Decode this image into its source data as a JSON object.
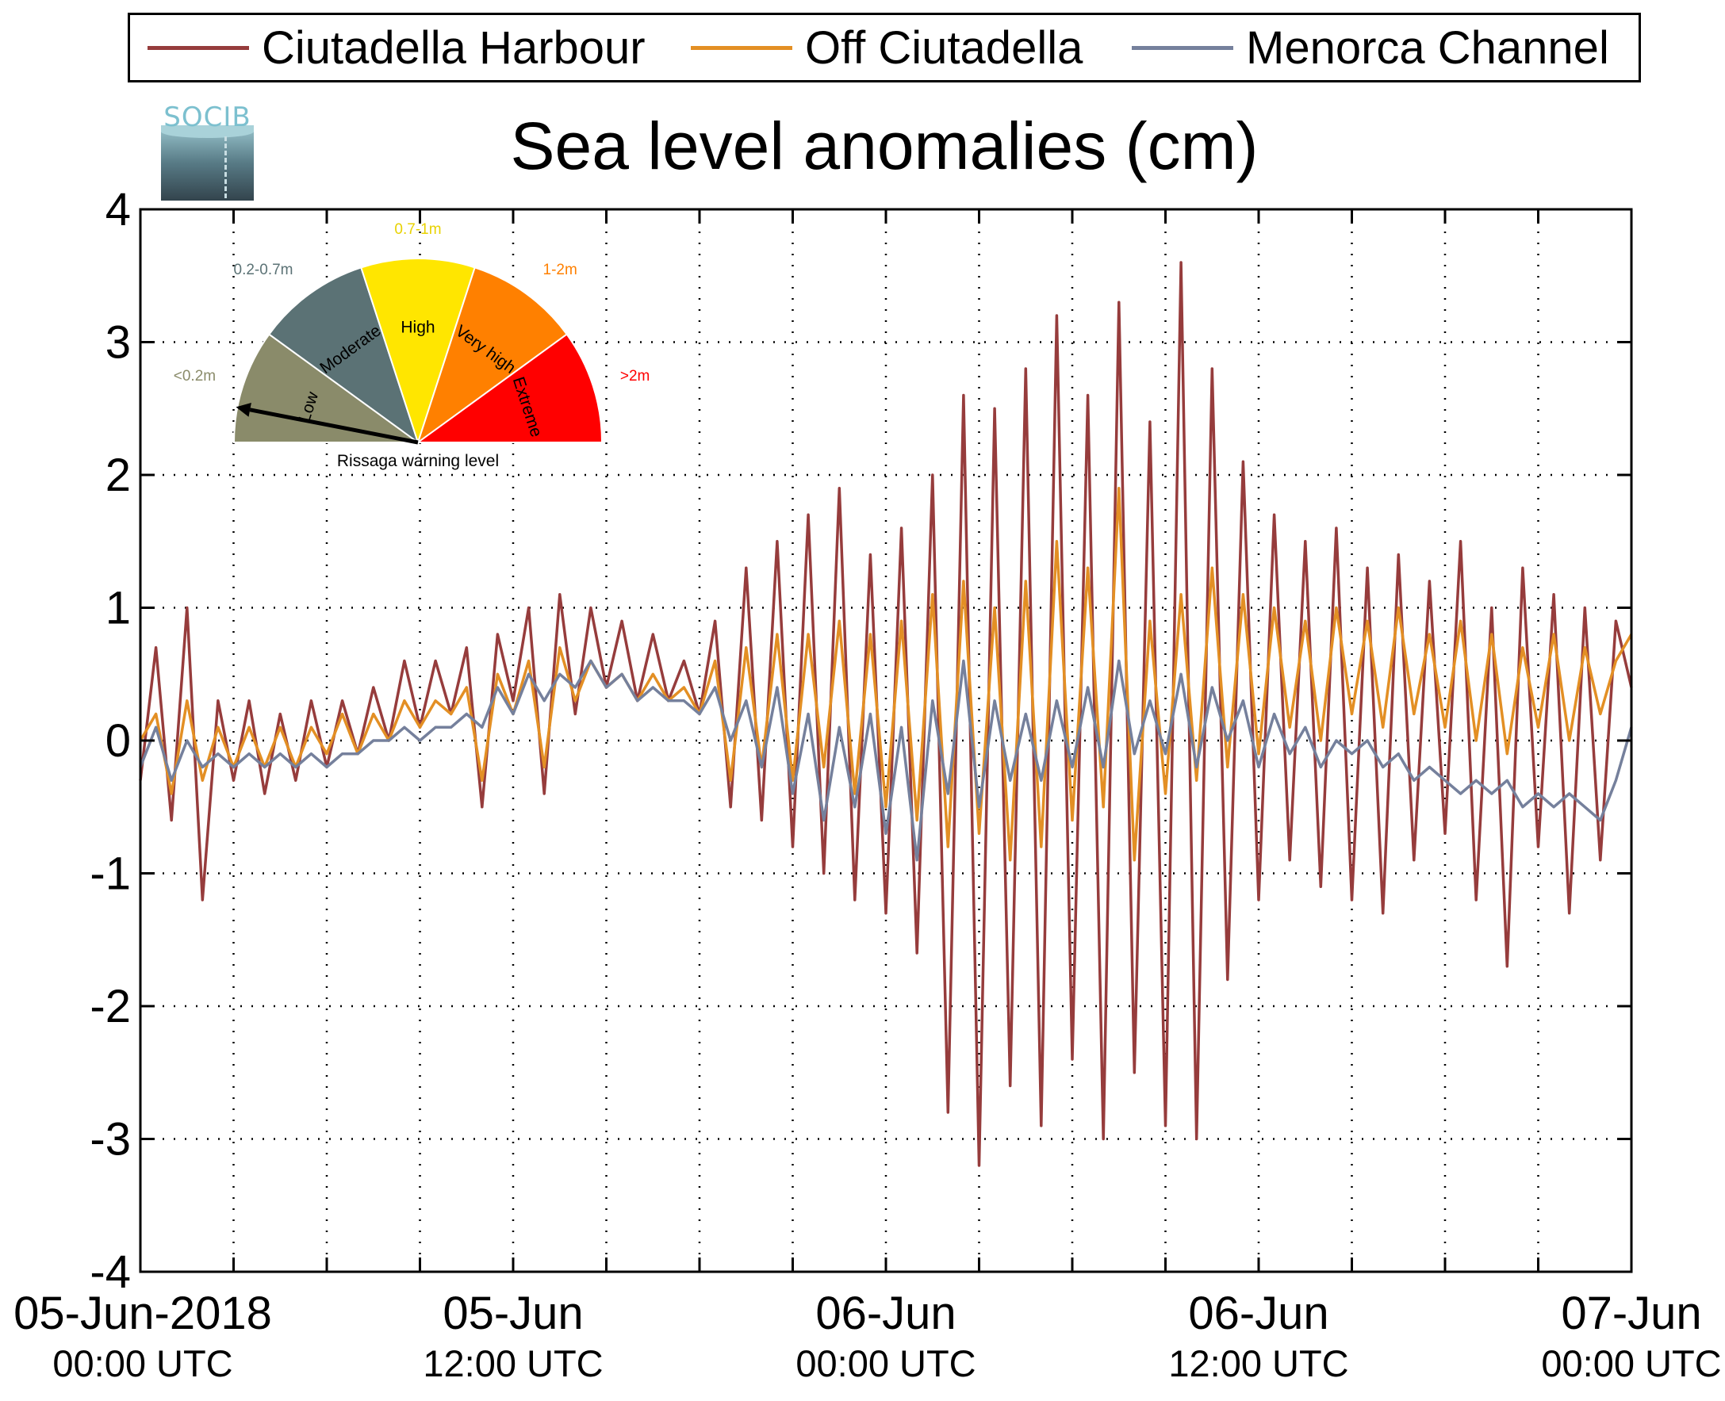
{
  "legend": {
    "items": [
      {
        "label": "Ciutadella Harbour",
        "color": "#963c3c"
      },
      {
        "label": "Off Ciutadella",
        "color": "#e38f24"
      },
      {
        "label": "Menorca Channel",
        "color": "#75809c"
      }
    ]
  },
  "logo": {
    "text": "SOCIB"
  },
  "gauge": {
    "caption": "Rissaga warning level",
    "current_level": "Low",
    "segments": [
      {
        "label": "Low",
        "range": "<0.2m",
        "color": "#8a8b6a"
      },
      {
        "label": "Moderate",
        "range": "0.2-0.7m",
        "color": "#5b7275"
      },
      {
        "label": "High",
        "range": "0.7-1m",
        "color": "#ffe600"
      },
      {
        "label": "Very high",
        "range": "1-2m",
        "color": "#ff8000"
      },
      {
        "label": "Extreme",
        "range": ">2m",
        "color": "#ff0000"
      }
    ]
  },
  "chart_data": {
    "type": "line",
    "title": "Sea level anomalies (cm)",
    "xlabel": "",
    "ylabel": "",
    "x_range": [
      "05-Jun-2018 00:00 UTC",
      "07-Jun-2018 00:00 UTC"
    ],
    "ylim": [
      -4,
      4
    ],
    "y_ticks": [
      4,
      3,
      2,
      1,
      0,
      -1,
      -2,
      -3,
      -4
    ],
    "y_tick_labels": [
      "4",
      "3",
      "2",
      "1",
      "0",
      "-1",
      "-2",
      "-3",
      "-4"
    ],
    "x_ticks_hours": [
      0,
      3,
      6,
      9,
      12,
      15,
      18,
      21,
      24,
      27,
      30,
      33,
      36,
      39,
      42,
      45,
      48
    ],
    "x_labeled_ticks": [
      {
        "hour": 0,
        "line1": "05-Jun-2018",
        "line2": "00:00 UTC"
      },
      {
        "hour": 12,
        "line1": "05-Jun",
        "line2": "12:00 UTC"
      },
      {
        "hour": 24,
        "line1": "06-Jun",
        "line2": "00:00 UTC"
      },
      {
        "hour": 36,
        "line1": "06-Jun",
        "line2": "12:00 UTC"
      },
      {
        "hour": 48,
        "line1": "07-Jun",
        "line2": "00:00 UTC"
      }
    ],
    "grid": true,
    "legend_position": "top",
    "series": [
      {
        "name": "Ciutadella Harbour",
        "color": "#963c3c",
        "x_hours": [
          0,
          0.5,
          1,
          1.5,
          2,
          2.5,
          3,
          3.5,
          4,
          4.5,
          5,
          5.5,
          6,
          6.5,
          7,
          7.5,
          8,
          8.5,
          9,
          9.5,
          10,
          10.5,
          11,
          11.5,
          12,
          12.5,
          13,
          13.5,
          14,
          14.5,
          15,
          15.5,
          16,
          16.5,
          17,
          17.5,
          18,
          18.5,
          19,
          19.5,
          20,
          20.5,
          21,
          21.5,
          22,
          22.5,
          23,
          23.5,
          24,
          24.5,
          25,
          25.5,
          26,
          26.5,
          27,
          27.5,
          28,
          28.5,
          29,
          29.5,
          30,
          30.5,
          31,
          31.5,
          32,
          32.5,
          33,
          33.5,
          34,
          34.5,
          35,
          35.5,
          36,
          36.5,
          37,
          37.5,
          38,
          38.5,
          39,
          39.5,
          40,
          40.5,
          41,
          41.5,
          42,
          42.5,
          43,
          43.5,
          44,
          44.5,
          45,
          45.5,
          46,
          46.5,
          47,
          47.5,
          48
        ],
        "y": [
          -0.3,
          0.7,
          -0.6,
          1.0,
          -1.2,
          0.3,
          -0.3,
          0.3,
          -0.4,
          0.2,
          -0.3,
          0.3,
          -0.2,
          0.3,
          -0.1,
          0.4,
          0.0,
          0.6,
          0.1,
          0.6,
          0.2,
          0.7,
          -0.5,
          0.8,
          0.3,
          1.0,
          -0.4,
          1.1,
          0.2,
          1.0,
          0.4,
          0.9,
          0.3,
          0.8,
          0.3,
          0.6,
          0.2,
          0.9,
          -0.5,
          1.3,
          -0.6,
          1.5,
          -0.8,
          1.7,
          -1.0,
          1.9,
          -1.2,
          1.4,
          -1.3,
          1.6,
          -1.6,
          2.0,
          -2.8,
          2.6,
          -3.2,
          2.5,
          -2.6,
          2.8,
          -2.9,
          3.2,
          -2.4,
          2.6,
          -3.0,
          3.3,
          -2.5,
          2.4,
          -2.9,
          3.6,
          -3.0,
          2.8,
          -1.8,
          2.1,
          -1.2,
          1.7,
          -0.9,
          1.5,
          -1.1,
          1.6,
          -1.2,
          1.3,
          -1.3,
          1.4,
          -0.9,
          1.2,
          -0.7,
          1.5,
          -1.2,
          1.0,
          -1.7,
          1.3,
          -0.8,
          1.1,
          -1.3,
          1.0,
          -0.9,
          0.9,
          0.4
        ]
      },
      {
        "name": "Off Ciutadella",
        "color": "#e38f24",
        "x_hours": [
          0,
          0.5,
          1,
          1.5,
          2,
          2.5,
          3,
          3.5,
          4,
          4.5,
          5,
          5.5,
          6,
          6.5,
          7,
          7.5,
          8,
          8.5,
          9,
          9.5,
          10,
          10.5,
          11,
          11.5,
          12,
          12.5,
          13,
          13.5,
          14,
          14.5,
          15,
          15.5,
          16,
          16.5,
          17,
          17.5,
          18,
          18.5,
          19,
          19.5,
          20,
          20.5,
          21,
          21.5,
          22,
          22.5,
          23,
          23.5,
          24,
          24.5,
          25,
          25.5,
          26,
          26.5,
          27,
          27.5,
          28,
          28.5,
          29,
          29.5,
          30,
          30.5,
          31,
          31.5,
          32,
          32.5,
          33,
          33.5,
          34,
          34.5,
          35,
          35.5,
          36,
          36.5,
          37,
          37.5,
          38,
          38.5,
          39,
          39.5,
          40,
          40.5,
          41,
          41.5,
          42,
          42.5,
          43,
          43.5,
          44,
          44.5,
          45,
          45.5,
          46,
          46.5,
          47,
          47.5,
          48
        ],
        "y": [
          0.0,
          0.2,
          -0.4,
          0.3,
          -0.3,
          0.1,
          -0.2,
          0.1,
          -0.2,
          0.1,
          -0.2,
          0.1,
          -0.1,
          0.2,
          -0.1,
          0.2,
          0.0,
          0.3,
          0.1,
          0.3,
          0.2,
          0.4,
          -0.3,
          0.5,
          0.2,
          0.6,
          -0.2,
          0.7,
          0.3,
          0.6,
          0.4,
          0.5,
          0.3,
          0.5,
          0.3,
          0.4,
          0.2,
          0.6,
          -0.3,
          0.7,
          -0.2,
          0.8,
          -0.3,
          0.8,
          -0.2,
          0.9,
          -0.4,
          0.8,
          -0.5,
          0.9,
          -0.6,
          1.1,
          -0.8,
          1.2,
          -0.7,
          1.0,
          -0.9,
          1.2,
          -0.8,
          1.5,
          -0.6,
          1.3,
          -0.5,
          1.9,
          -0.9,
          0.9,
          -0.4,
          1.1,
          -0.3,
          1.3,
          -0.2,
          1.1,
          -0.1,
          1.0,
          0.1,
          0.9,
          0.0,
          1.0,
          0.2,
          0.9,
          0.1,
          1.0,
          0.2,
          0.8,
          0.1,
          0.9,
          0.0,
          0.8,
          -0.1,
          0.7,
          0.1,
          0.8,
          0.0,
          0.7,
          0.2,
          0.6,
          0.8
        ]
      },
      {
        "name": "Menorca Channel",
        "color": "#75809c",
        "x_hours": [
          0,
          0.5,
          1,
          1.5,
          2,
          2.5,
          3,
          3.5,
          4,
          4.5,
          5,
          5.5,
          6,
          6.5,
          7,
          7.5,
          8,
          8.5,
          9,
          9.5,
          10,
          10.5,
          11,
          11.5,
          12,
          12.5,
          13,
          13.5,
          14,
          14.5,
          15,
          15.5,
          16,
          16.5,
          17,
          17.5,
          18,
          18.5,
          19,
          19.5,
          20,
          20.5,
          21,
          21.5,
          22,
          22.5,
          23,
          23.5,
          24,
          24.5,
          25,
          25.5,
          26,
          26.5,
          27,
          27.5,
          28,
          28.5,
          29,
          29.5,
          30,
          30.5,
          31,
          31.5,
          32,
          32.5,
          33,
          33.5,
          34,
          34.5,
          35,
          35.5,
          36,
          36.5,
          37,
          37.5,
          38,
          38.5,
          39,
          39.5,
          40,
          40.5,
          41,
          41.5,
          42,
          42.5,
          43,
          43.5,
          44,
          44.5,
          45,
          45.5,
          46,
          46.5,
          47,
          47.5,
          48
        ],
        "y": [
          -0.2,
          0.1,
          -0.3,
          0.0,
          -0.2,
          -0.1,
          -0.2,
          -0.1,
          -0.2,
          -0.1,
          -0.2,
          -0.1,
          -0.2,
          -0.1,
          -0.1,
          0.0,
          0.0,
          0.1,
          0.0,
          0.1,
          0.1,
          0.2,
          0.1,
          0.4,
          0.2,
          0.5,
          0.3,
          0.5,
          0.4,
          0.6,
          0.4,
          0.5,
          0.3,
          0.4,
          0.3,
          0.3,
          0.2,
          0.4,
          0.0,
          0.3,
          -0.2,
          0.4,
          -0.4,
          0.2,
          -0.6,
          0.1,
          -0.5,
          0.2,
          -0.7,
          0.1,
          -0.9,
          0.3,
          -0.4,
          0.6,
          -0.5,
          0.3,
          -0.3,
          0.2,
          -0.3,
          0.3,
          -0.2,
          0.4,
          -0.2,
          0.6,
          -0.1,
          0.3,
          -0.1,
          0.5,
          -0.2,
          0.4,
          0.0,
          0.3,
          -0.2,
          0.2,
          -0.1,
          0.1,
          -0.2,
          0.0,
          -0.1,
          0.0,
          -0.2,
          -0.1,
          -0.3,
          -0.2,
          -0.3,
          -0.4,
          -0.3,
          -0.4,
          -0.3,
          -0.5,
          -0.4,
          -0.5,
          -0.4,
          -0.5,
          -0.6,
          -0.3,
          0.1
        ]
      }
    ]
  }
}
